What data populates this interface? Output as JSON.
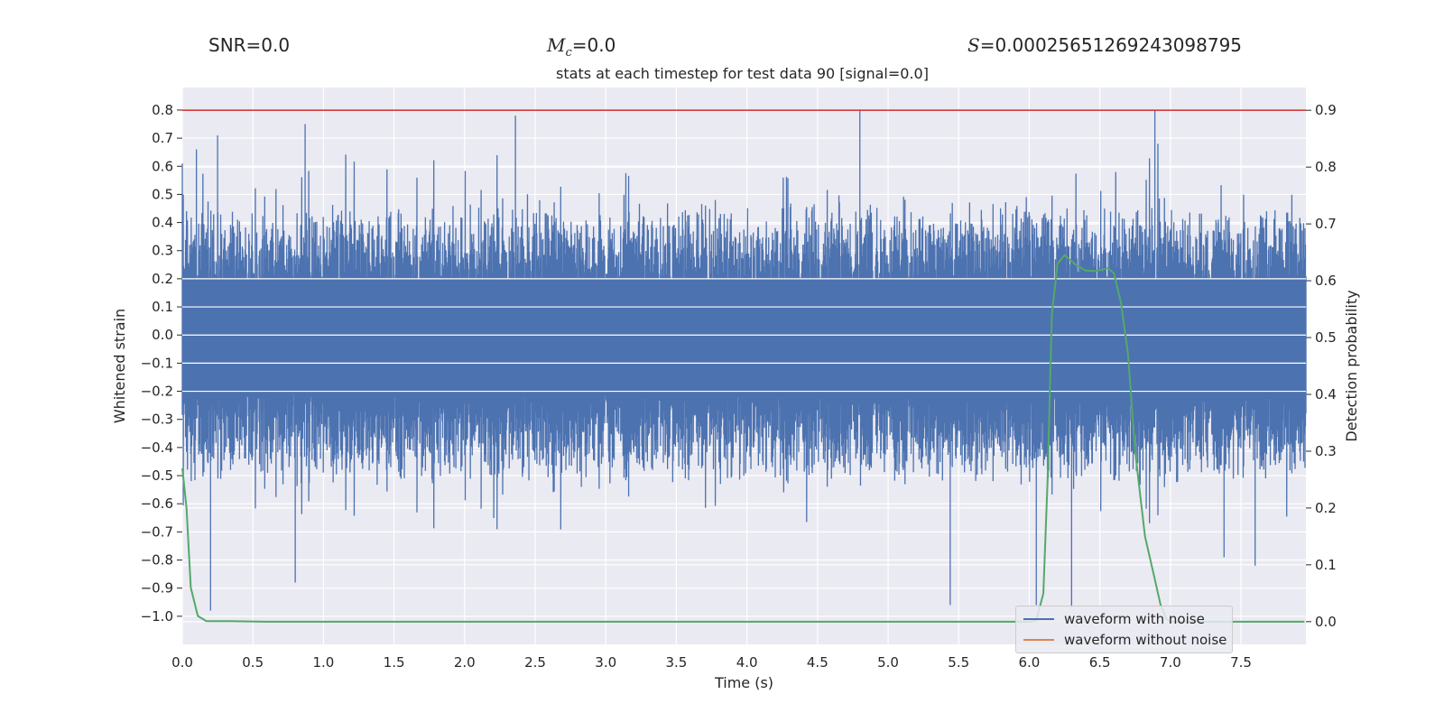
{
  "header": {
    "snr_label": "SNR=0.0",
    "mc_symbol": "M",
    "mc_subscript": "c",
    "mc_value": "=0.0",
    "s_symbol": "S",
    "s_value": "=0.00025651269243098795"
  },
  "chart_data": {
    "type": "line",
    "title": "stats at each timestep for test data 90 [signal=0.0]",
    "xlabel": "Time (s)",
    "ylabel": "Whitened strain",
    "y2label": "Detection probability",
    "xlim": [
      0.0,
      7.96
    ],
    "ylim": [
      -1.1,
      0.88
    ],
    "y2lim": [
      -0.04,
      0.94
    ],
    "xticks": [
      "0.0",
      "0.5",
      "1.0",
      "1.5",
      "2.0",
      "2.5",
      "3.0",
      "3.5",
      "4.0",
      "4.5",
      "5.0",
      "5.5",
      "6.0",
      "6.5",
      "7.0",
      "7.5"
    ],
    "yticks": [
      "0.8",
      "0.7",
      "0.6",
      "0.5",
      "0.4",
      "0.3",
      "0.2",
      "0.1",
      "0.0",
      "−0.1",
      "−0.2",
      "−0.3",
      "−0.4",
      "−0.5",
      "−0.6",
      "−0.7",
      "−0.8",
      "−0.9",
      "−1.0"
    ],
    "y2ticks": [
      "0.9",
      "0.8",
      "0.7",
      "0.6",
      "0.5",
      "0.4",
      "0.3",
      "0.2",
      "0.1",
      "0.0"
    ],
    "grid": true,
    "threshold": {
      "axis": "y2",
      "value": 0.9,
      "color": "#d62728"
    },
    "series": [
      {
        "name": "waveform with noise",
        "axis": "y",
        "color": "#4c72b0",
        "kind": "dense noise",
        "center": 0.0,
        "core_band": [
          -0.2,
          0.2
        ],
        "typical_extent": [
          -0.5,
          0.5
        ],
        "peaks": [
          {
            "x": 0.0,
            "y": 0.61
          },
          {
            "x": 0.1,
            "y": 0.66
          },
          {
            "x": 0.2,
            "y": -0.98
          },
          {
            "x": 0.25,
            "y": 0.71
          },
          {
            "x": 0.8,
            "y": -0.88
          },
          {
            "x": 0.87,
            "y": 0.75
          },
          {
            "x": 2.36,
            "y": 0.78
          },
          {
            "x": 4.8,
            "y": 0.8
          },
          {
            "x": 5.44,
            "y": -0.96
          },
          {
            "x": 6.05,
            "y": -0.96
          },
          {
            "x": 6.3,
            "y": -0.97
          },
          {
            "x": 6.89,
            "y": 0.8
          },
          {
            "x": 7.38,
            "y": -0.79
          },
          {
            "x": 7.6,
            "y": -0.82
          }
        ]
      },
      {
        "name": "waveform without noise",
        "axis": "y",
        "color": "#dd8452",
        "x": [],
        "y": []
      },
      {
        "name": "detection probability",
        "axis": "y2",
        "color": "#55a868",
        "x": [
          0.0,
          0.03,
          0.06,
          0.11,
          0.17,
          0.3,
          0.6,
          1.0,
          2.0,
          3.0,
          4.0,
          5.0,
          5.5,
          6.0,
          6.05,
          6.1,
          6.13,
          6.16,
          6.2,
          6.25,
          6.33,
          6.4,
          6.47,
          6.56,
          6.6,
          6.65,
          6.7,
          6.75,
          6.82,
          6.88,
          6.93,
          6.97,
          7.0,
          7.5,
          7.95
        ],
        "y": [
          0.27,
          0.2,
          0.06,
          0.01,
          0.001,
          0.001,
          0.0,
          0.0,
          0.0,
          0.0,
          0.0,
          0.0,
          0.0,
          0.0,
          0.002,
          0.05,
          0.25,
          0.54,
          0.63,
          0.645,
          0.628,
          0.618,
          0.617,
          0.622,
          0.613,
          0.561,
          0.47,
          0.3,
          0.15,
          0.085,
          0.03,
          0.005,
          0.0,
          0.0,
          0.0
        ]
      }
    ],
    "legend": {
      "location": "lower-right",
      "entries": [
        {
          "label": "waveform with noise",
          "color": "#4c72b0"
        },
        {
          "label": "waveform without noise",
          "color": "#dd8452"
        }
      ]
    }
  }
}
